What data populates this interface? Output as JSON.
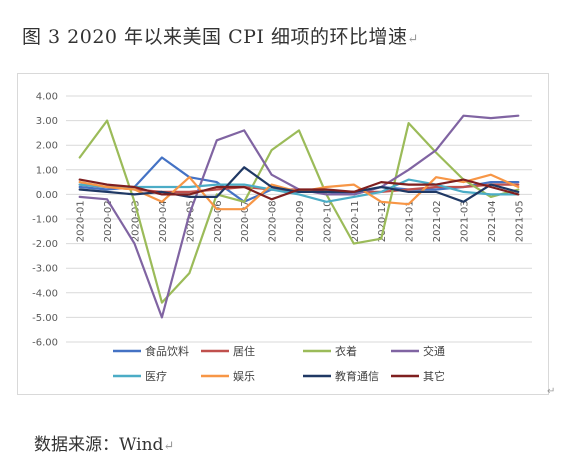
{
  "figure": {
    "title": "图 3 2020 年以来美国 CPI 细项的环比增速",
    "paragraph_mark": "↵",
    "source": "数据来源：Wind"
  },
  "chart_data": {
    "type": "line",
    "title": "",
    "xlabel": "",
    "ylabel": "",
    "ylim": [
      -6,
      4
    ],
    "y_ticks": [
      "4.00",
      "3.00",
      "2.00",
      "1.00",
      "0.00",
      "-1.00",
      "-2.00",
      "-3.00",
      "-4.00",
      "-5.00",
      "-6.00"
    ],
    "y_tick_values": [
      4,
      3,
      2,
      1,
      0,
      -1,
      -2,
      -3,
      -4,
      -5,
      -6
    ],
    "grid": "horizontal",
    "legend_position": "bottom",
    "categories": [
      "2020-01",
      "2020-02",
      "2020-03",
      "2020-04",
      "2020-05",
      "2020-06",
      "2020-07",
      "2020-08",
      "2020-09",
      "2020-10",
      "2020-11",
      "2020-12",
      "2021-01",
      "2021-02",
      "2021-03",
      "2021-04",
      "2021-05"
    ],
    "series": [
      {
        "name": "食品饮料",
        "color": "#4472c4",
        "values": [
          0.3,
          0.2,
          0.3,
          1.5,
          0.7,
          0.5,
          -0.3,
          0.2,
          0.1,
          0.1,
          0.0,
          0.3,
          0.2,
          0.2,
          0.3,
          0.5,
          0.5
        ]
      },
      {
        "name": "居住",
        "color": "#c0504d",
        "values": [
          0.4,
          0.3,
          0.2,
          0.1,
          0.1,
          0.2,
          0.3,
          0.2,
          0.2,
          0.1,
          0.1,
          0.1,
          0.2,
          0.3,
          0.3,
          0.4,
          0.4
        ]
      },
      {
        "name": "衣着",
        "color": "#9bbb59",
        "values": [
          1.5,
          3.0,
          -0.3,
          -4.4,
          -3.2,
          0.0,
          -0.3,
          1.8,
          2.6,
          0.0,
          -2.0,
          -1.8,
          2.9,
          1.7,
          0.6,
          -0.1,
          0.2
        ]
      },
      {
        "name": "交通",
        "color": "#8064a2",
        "values": [
          -0.1,
          -0.2,
          -2.0,
          -5.0,
          -0.8,
          2.2,
          2.6,
          0.8,
          0.2,
          0.0,
          0.0,
          0.3,
          1.0,
          1.8,
          3.2,
          3.1,
          3.2
        ]
      },
      {
        "name": "医疗",
        "color": "#4bacc6",
        "values": [
          0.4,
          0.3,
          0.3,
          0.3,
          0.3,
          0.4,
          0.4,
          0.2,
          0.0,
          -0.3,
          -0.1,
          0.1,
          0.6,
          0.4,
          0.1,
          0.0,
          0.0
        ]
      },
      {
        "name": "娱乐",
        "color": "#f79646",
        "values": [
          0.5,
          0.3,
          0.2,
          -0.3,
          0.7,
          -0.6,
          -0.6,
          0.4,
          0.1,
          0.3,
          0.4,
          -0.3,
          -0.4,
          0.7,
          0.5,
          0.8,
          0.3
        ]
      },
      {
        "name": "教育通信",
        "color": "#1f3864",
        "values": [
          0.2,
          0.1,
          0.0,
          0.1,
          -0.1,
          -0.1,
          1.1,
          0.3,
          0.1,
          0.1,
          0.1,
          0.3,
          0.1,
          0.1,
          -0.3,
          0.4,
          0.1
        ]
      },
      {
        "name": "其它",
        "color": "#7f1f1f",
        "values": [
          0.6,
          0.4,
          0.3,
          0.0,
          0.0,
          0.3,
          0.3,
          -0.2,
          0.2,
          0.2,
          0.1,
          0.5,
          0.4,
          0.4,
          0.6,
          0.3,
          0.0
        ]
      }
    ]
  }
}
